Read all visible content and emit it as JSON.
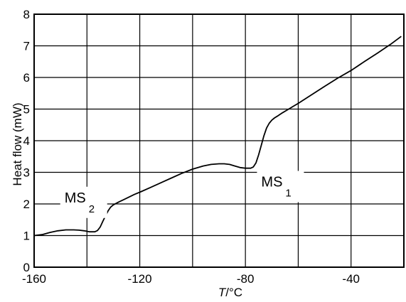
{
  "chart_data": {
    "type": "line",
    "xlabel_italic": "T",
    "xlabel_unit": "/°C",
    "ylabel": "Heat flow (mW)",
    "xlim": [
      -160,
      -20
    ],
    "ylim": [
      0,
      8
    ],
    "grid": true,
    "xticks": [
      -160,
      -120,
      -80,
      -40
    ],
    "xtick_labels": [
      "-160",
      "-120",
      "-80",
      "-40"
    ],
    "yticks": [
      0,
      1,
      2,
      3,
      4,
      5,
      6,
      7,
      8
    ],
    "ytick_labels": [
      "0",
      "1",
      "2",
      "3",
      "4",
      "5",
      "6",
      "7",
      "8"
    ],
    "annotations": [
      {
        "main": "MS",
        "sub": "2",
        "x": -148.5,
        "y": 2.05
      },
      {
        "main": "MS",
        "sub": "1",
        "x": -74,
        "y": 2.55
      }
    ],
    "series": [
      {
        "x": [
          -160,
          -157,
          -154,
          -151,
          -148,
          -145,
          -143,
          -141,
          -139,
          -137,
          -136,
          -135,
          -134,
          -133,
          -132,
          -131,
          -130,
          -128,
          -126,
          -124,
          -122,
          -120,
          -116,
          -112,
          -108,
          -104,
          -100,
          -96,
          -93,
          -90,
          -88,
          -86,
          -84,
          -82,
          -80,
          -78,
          -77,
          -76,
          -75,
          -74,
          -73,
          -72,
          -71,
          -70,
          -69,
          -68,
          -66,
          -64,
          -62,
          -60,
          -55,
          -50,
          -45,
          -40,
          -35,
          -30,
          -25,
          -21
        ],
        "y": [
          1.0,
          1.03,
          1.1,
          1.15,
          1.18,
          1.18,
          1.17,
          1.15,
          1.12,
          1.12,
          1.16,
          1.27,
          1.45,
          1.62,
          1.78,
          1.9,
          1.97,
          2.06,
          2.14,
          2.22,
          2.3,
          2.37,
          2.52,
          2.67,
          2.82,
          2.97,
          3.1,
          3.2,
          3.25,
          3.27,
          3.27,
          3.25,
          3.2,
          3.15,
          3.13,
          3.13,
          3.17,
          3.3,
          3.55,
          3.85,
          4.15,
          4.4,
          4.55,
          4.65,
          4.72,
          4.77,
          4.88,
          4.98,
          5.08,
          5.18,
          5.45,
          5.72,
          5.98,
          6.22,
          6.5,
          6.77,
          7.05,
          7.3
        ]
      }
    ]
  }
}
